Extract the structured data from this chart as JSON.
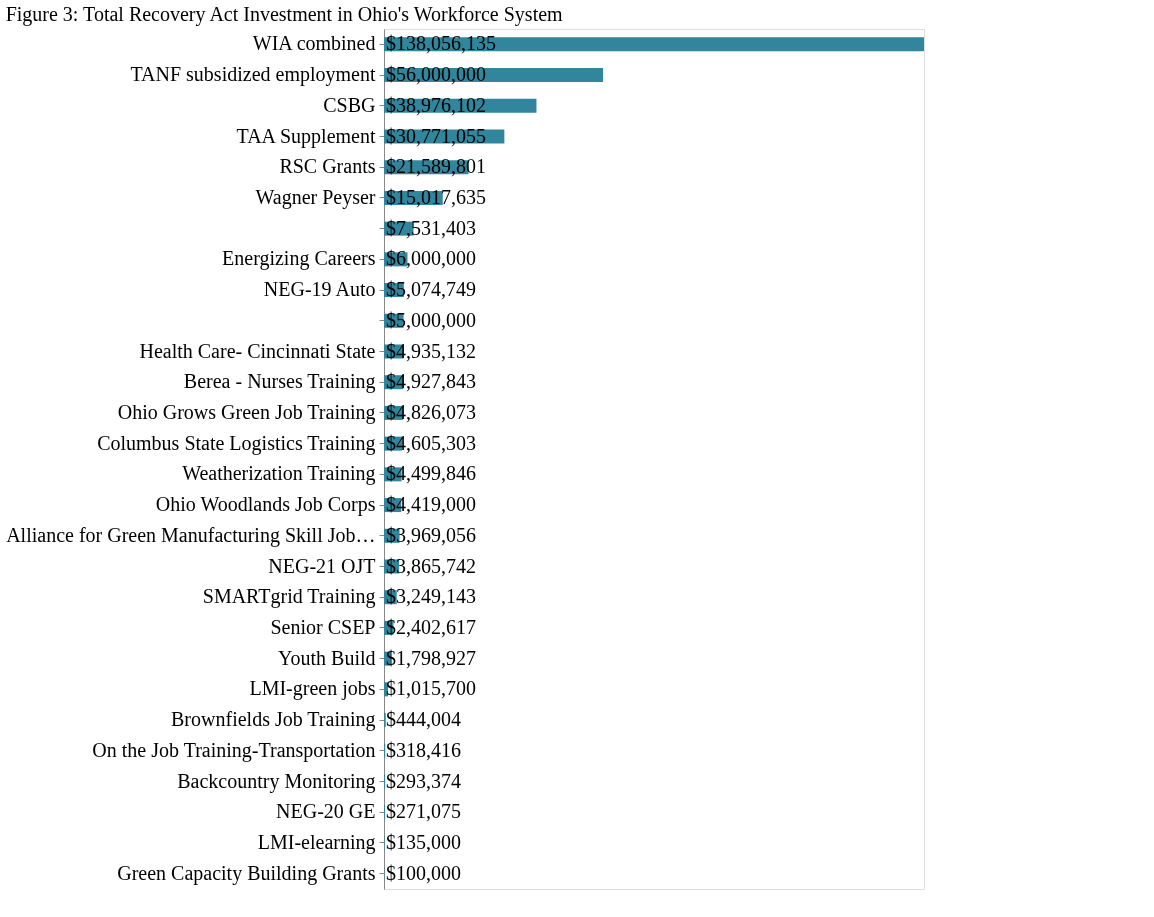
{
  "chart_data": {
    "type": "bar",
    "orientation": "horizontal",
    "title": "Figure 3: Total Recovery Act Investment in Ohio's Workforce System",
    "categories": [
      "WIA combined",
      "TANF subsidized employment",
      "CSBG",
      "TAA Supplement",
      "RSC Grants",
      "Wagner Peyser",
      null,
      "Energizing Careers",
      "NEG-19 Auto",
      null,
      "Health Care- Cincinnati State",
      "Berea - Nurses Training",
      "Ohio Grows Green Job Training",
      "Columbus State Logistics Training",
      "Weatherization Training",
      "Ohio Woodlands Job Corps",
      "Alliance for Green Manufacturing Skill Job…",
      "NEG-21 OJT",
      "SMARTgrid Training",
      "Senior CSEP",
      "Youth Build",
      "LMI-green jobs",
      "Brownfields Job Training",
      "On the Job Training-Transportation",
      "Backcountry Monitoring",
      "NEG-20 GE",
      "LMI-elearning",
      "Green Capacity Building Grants"
    ],
    "values": [
      138056135,
      56000000,
      38976102,
      30771055,
      21589801,
      15017635,
      7531403,
      6000000,
      5074749,
      5000000,
      4935132,
      4927843,
      4826073,
      4605303,
      4499846,
      4419000,
      3969056,
      3865742,
      3249143,
      2402617,
      1798927,
      1015700,
      444004,
      318416,
      293374,
      271075,
      135000,
      100000
    ],
    "value_labels": [
      "$138,056,135",
      "$56,000,000",
      "$38,976,102",
      "$30,771,055",
      "$21,589,801",
      "$15,017,635",
      "$7,531,403",
      "$6,000,000",
      "$5,074,749",
      "$5,000,000",
      "$4,935,132",
      "$4,927,843",
      "$4,826,073",
      "$4,605,303",
      "$4,499,846",
      "$4,419,000",
      "$3,969,056",
      "$3,865,742",
      "$3,249,143",
      "$2,402,617",
      "$1,798,927",
      "$1,015,700",
      "$444,004",
      "$318,416",
      "$293,374",
      "$271,075",
      "$135,000",
      "$100,000"
    ],
    "color": "#31859c"
  }
}
